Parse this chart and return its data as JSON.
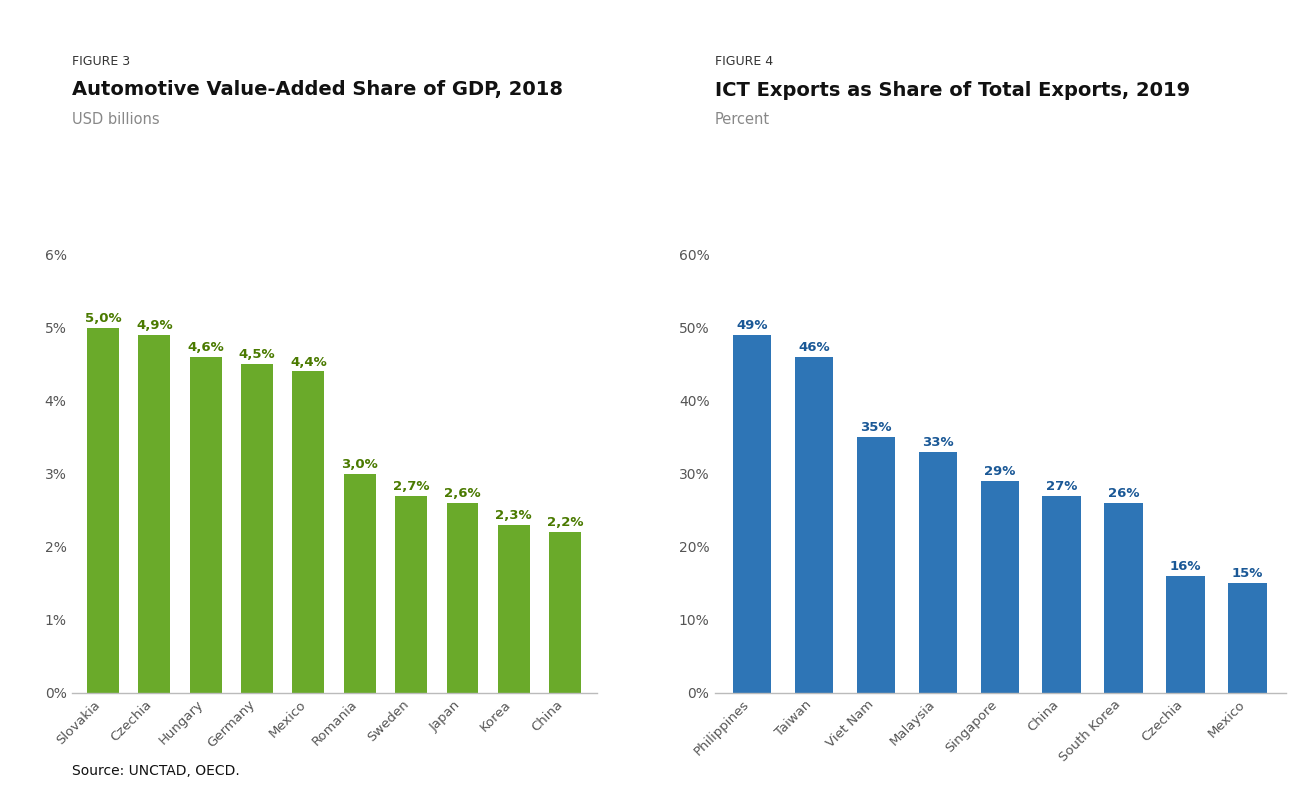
{
  "fig3": {
    "figure_label": "FIGURE 3",
    "title": "Automotive Value-Added Share of GDP, 2018",
    "subtitle": "USD billions",
    "categories": [
      "Slovakia",
      "Czechia",
      "Hungary",
      "Germany",
      "Mexico",
      "Romania",
      "Sweden",
      "Japan",
      "Korea",
      "China"
    ],
    "values": [
      5.0,
      4.9,
      4.6,
      4.5,
      4.4,
      3.0,
      2.7,
      2.6,
      2.3,
      2.2
    ],
    "labels": [
      "5,0%",
      "4,9%",
      "4,6%",
      "4,5%",
      "4,4%",
      "3,0%",
      "2,7%",
      "2,6%",
      "2,3%",
      "2,2%"
    ],
    "bar_color": "#6aaa2a",
    "label_color": "#4a7a00",
    "ylim": [
      0,
      6
    ],
    "yticks": [
      0,
      1,
      2,
      3,
      4,
      5,
      6
    ],
    "ytick_labels": [
      "0%",
      "1%",
      "2%",
      "3%",
      "4%",
      "5%",
      "6%"
    ]
  },
  "fig4": {
    "figure_label": "FIGURE 4",
    "title": "ICT Exports as Share of Total Exports, 2019",
    "subtitle": "Percent",
    "categories": [
      "Philippines",
      "Taiwan",
      "Viet Nam",
      "Malaysia",
      "Singapore",
      "China",
      "South Korea",
      "Czechia",
      "Mexico"
    ],
    "values": [
      49,
      46,
      35,
      33,
      29,
      27,
      26,
      16,
      15
    ],
    "labels": [
      "49%",
      "46%",
      "35%",
      "33%",
      "29%",
      "27%",
      "26%",
      "16%",
      "15%"
    ],
    "bar_color": "#2e75b6",
    "label_color": "#1a5896",
    "ylim": [
      0,
      60
    ],
    "yticks": [
      0,
      10,
      20,
      30,
      40,
      50,
      60
    ],
    "ytick_labels": [
      "0%",
      "10%",
      "20%",
      "30%",
      "40%",
      "50%",
      "60%"
    ]
  },
  "source_text": "Source: UNCTAD, OECD.",
  "bg_color": "#ffffff",
  "axis_line_color": "#bbbbbb",
  "tick_label_color": "#555555",
  "figure_label_fontsize": 9,
  "title_fontsize": 14,
  "subtitle_fontsize": 10.5,
  "bar_label_fontsize": 9.5,
  "xtick_fontsize": 9.5,
  "ytick_fontsize": 10,
  "source_fontsize": 10
}
